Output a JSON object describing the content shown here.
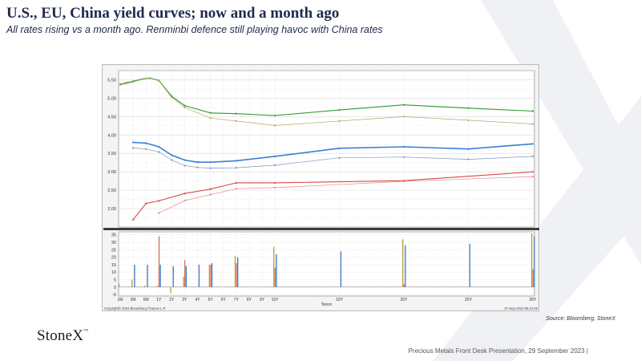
{
  "header": {
    "title": "U.S., EU, China yield curves; now and a month ago",
    "subtitle": "All rates rising vs a month ago.  Renminbi defence still playing havoc with China rates"
  },
  "colors": {
    "title": "#1f2a4d",
    "china_now": "#2e9a2e",
    "china_ago": "#b5a86a",
    "us_now": "#3b7fd6",
    "us_ago": "#7a95c0",
    "eu_now": "#d94848",
    "eu_ago": "#e48a8a",
    "bar_china": "#b5a03a",
    "bar_us": "#3f75c8",
    "bar_eu": "#d46a55"
  },
  "chart_data": {
    "type": "line",
    "xlabel": "Tenor",
    "tenors": [
      "1M",
      "3M",
      "6M",
      "1Y",
      "2Y",
      "3Y",
      "4Y",
      "5Y",
      "6Y",
      "7Y",
      "8Y",
      "9Y",
      "10Y",
      "15Y",
      "20Y",
      "25Y",
      "30Y"
    ],
    "top_panel": {
      "ylim": [
        1.5,
        5.75
      ],
      "yticks": [
        "5.50",
        "5.00",
        "4.50",
        "4.00",
        "3.50",
        "3.00",
        "2.50",
        "2.00"
      ],
      "series": [
        {
          "key": "china_now",
          "points": [
            [
              0,
              5.38
            ],
            [
              0.5,
              5.42
            ],
            [
              1,
              5.46
            ],
            [
              1.7,
              5.52
            ],
            [
              2.3,
              5.55
            ],
            [
              3,
              5.48
            ],
            [
              4,
              5.05
            ],
            [
              5,
              4.8
            ],
            [
              7,
              4.6
            ],
            [
              9,
              4.58
            ],
            [
              12,
              4.53
            ],
            [
              17,
              4.68
            ],
            [
              22,
              4.82
            ],
            [
              27,
              4.73
            ],
            [
              32,
              4.65
            ]
          ]
        },
        {
          "key": "china_ago",
          "points": [
            [
              0,
              5.36
            ],
            [
              0.5,
              5.4
            ],
            [
              1,
              5.44
            ],
            [
              1.7,
              5.51
            ],
            [
              2.3,
              5.54
            ],
            [
              3,
              5.47
            ],
            [
              4,
              5.02
            ],
            [
              5,
              4.75
            ],
            [
              7,
              4.46
            ],
            [
              9,
              4.38
            ],
            [
              12,
              4.26
            ],
            [
              17,
              4.38
            ],
            [
              22,
              4.5
            ],
            [
              27,
              4.4
            ],
            [
              32,
              4.3
            ]
          ]
        },
        {
          "key": "us_now",
          "points": [
            [
              1,
              3.8
            ],
            [
              2,
              3.78
            ],
            [
              3,
              3.68
            ],
            [
              4,
              3.45
            ],
            [
              5,
              3.32
            ],
            [
              6,
              3.26
            ],
            [
              7,
              3.26
            ],
            [
              9,
              3.3
            ],
            [
              12,
              3.42
            ],
            [
              17,
              3.64
            ],
            [
              22,
              3.68
            ],
            [
              27,
              3.62
            ],
            [
              32,
              3.76
            ]
          ]
        },
        {
          "key": "us_ago",
          "points": [
            [
              1,
              3.65
            ],
            [
              2,
              3.62
            ],
            [
              3,
              3.54
            ],
            [
              4,
              3.32
            ],
            [
              5,
              3.17
            ],
            [
              6,
              3.12
            ],
            [
              7,
              3.1
            ],
            [
              9,
              3.11
            ],
            [
              12,
              3.18
            ],
            [
              17,
              3.38
            ],
            [
              22,
              3.4
            ],
            [
              27,
              3.34
            ],
            [
              32,
              3.42
            ]
          ]
        },
        {
          "key": "eu_now",
          "points": [
            [
              1,
              1.7
            ],
            [
              2,
              2.14
            ],
            [
              3,
              2.21
            ],
            [
              5,
              2.41
            ],
            [
              7,
              2.53
            ],
            [
              9,
              2.7
            ],
            [
              12,
              2.7
            ],
            [
              22,
              2.76
            ],
            [
              32,
              3.0
            ]
          ]
        },
        {
          "key": "eu_ago",
          "points": [
            [
              3,
              1.88
            ],
            [
              5,
              2.22
            ],
            [
              7,
              2.38
            ],
            [
              9,
              2.54
            ],
            [
              12,
              2.57
            ],
            [
              22,
              2.74
            ],
            [
              32,
              2.87
            ]
          ]
        }
      ]
    },
    "bottom_panel": {
      "ylim": [
        -6,
        37
      ],
      "yticks": [
        "35",
        "30",
        "25",
        "20",
        "15",
        "10",
        "5",
        "0",
        "-5"
      ],
      "bars": [
        {
          "tenor_index": 0,
          "china": 2,
          "us": 0,
          "eu": 0
        },
        {
          "tenor_index": 1,
          "china": 5,
          "us": 15,
          "eu": 0
        },
        {
          "tenor_index": 2,
          "china": 1,
          "us": 15,
          "eu": 0
        },
        {
          "tenor_index": 3,
          "china": 1,
          "us": 15,
          "eu": 34
        },
        {
          "tenor_index": 4,
          "china": -4,
          "us": 14,
          "eu": 0
        },
        {
          "tenor_index": 5,
          "china": 7,
          "us": 14,
          "eu": 18
        },
        {
          "tenor_index": 6,
          "china": 0,
          "us": 15,
          "eu": 0
        },
        {
          "tenor_index": 7,
          "china": 15,
          "us": 16,
          "eu": 15
        },
        {
          "tenor_index": 9,
          "china": 21,
          "us": 20,
          "eu": 16
        },
        {
          "tenor_index": 12,
          "china": 27,
          "us": 22,
          "eu": 13
        },
        {
          "tenor_index": 13,
          "china": 0,
          "us": 24,
          "eu": 0
        },
        {
          "tenor_index": 14,
          "china": 32,
          "us": 28,
          "eu": 2
        },
        {
          "tenor_index": 15,
          "china": 0,
          "us": 29,
          "eu": 0
        },
        {
          "tenor_index": 16,
          "china": 36,
          "us": 34,
          "eu": 12
        }
      ]
    },
    "copyright": "Copyright© 2023 Bloomberg Finance L.P.",
    "timestamp": "27-Sep-2023 08:13:46"
  },
  "source": "Source:  Bloomberg,  StoneX",
  "logo": {
    "text": "StoneX",
    "mark": "™"
  },
  "footer": "Precious Metals Front Desk Presentation, 29 September 2023 |"
}
